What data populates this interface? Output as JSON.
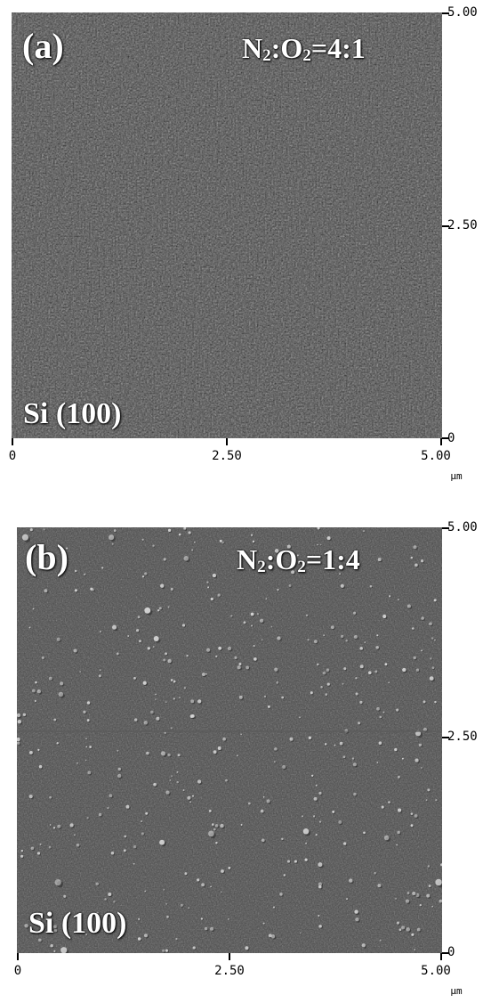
{
  "panels": [
    {
      "tag": "(a)",
      "ratio": {
        "pre": "N",
        "s1": "2",
        "mid": ":O",
        "s2": "2",
        "post": "=4:1"
      },
      "substrate": "Si (100)",
      "y_ticks": [
        "5.00",
        "2.50",
        "0"
      ],
      "x_ticks": [
        "0",
        "2.50",
        "5.00"
      ],
      "unit": "µm"
    },
    {
      "tag": "(b)",
      "ratio": {
        "pre": "N",
        "s1": "2",
        "mid": ":O",
        "s2": "2",
        "post": "=1:4"
      },
      "substrate": "Si (100)",
      "y_ticks": [
        "5.00",
        "2.50",
        "0"
      ],
      "x_ticks": [
        "0",
        "2.50",
        "5.00"
      ],
      "unit": "µm"
    }
  ]
}
